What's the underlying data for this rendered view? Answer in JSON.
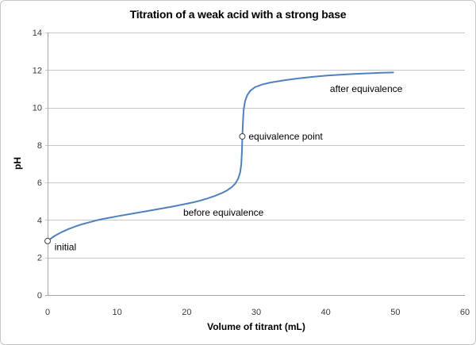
{
  "chart_data": {
    "type": "line",
    "title": "Titration of a weak acid with a strong base",
    "xlabel": "Volume of titrant (mL)",
    "ylabel": "pH",
    "xlim": [
      0,
      60
    ],
    "ylim": [
      0,
      14
    ],
    "xticks": [
      0,
      10,
      20,
      30,
      40,
      50,
      60
    ],
    "yticks": [
      0,
      2,
      4,
      6,
      8,
      10,
      12,
      14
    ],
    "grid": "horizontal",
    "legend_position": "none",
    "line_color": "#4F81BD",
    "gridline_color": "#c9c9c9",
    "axis_color": "#a6a6a6",
    "tick_label_color": "#3a3a3a",
    "marker_outline_color": "#404040",
    "series": [
      {
        "name": "titration curve",
        "points": [
          [
            0,
            2.88
          ],
          [
            0.5,
            3.02
          ],
          [
            1,
            3.15
          ],
          [
            2,
            3.35
          ],
          [
            3,
            3.52
          ],
          [
            4,
            3.66
          ],
          [
            5,
            3.78
          ],
          [
            6,
            3.88
          ],
          [
            7,
            3.98
          ],
          [
            8,
            4.06
          ],
          [
            9,
            4.13
          ],
          [
            10,
            4.2
          ],
          [
            12,
            4.33
          ],
          [
            14,
            4.46
          ],
          [
            16,
            4.59
          ],
          [
            18,
            4.72
          ],
          [
            20,
            4.87
          ],
          [
            21,
            4.95
          ],
          [
            22,
            5.04
          ],
          [
            23,
            5.15
          ],
          [
            24,
            5.28
          ],
          [
            25,
            5.43
          ],
          [
            25.8,
            5.58
          ],
          [
            26.5,
            5.76
          ],
          [
            27,
            5.95
          ],
          [
            27.4,
            6.2
          ],
          [
            27.7,
            6.55
          ],
          [
            27.85,
            7.0
          ],
          [
            27.95,
            7.7
          ],
          [
            28,
            8.46
          ],
          [
            28.1,
            9.3
          ],
          [
            28.2,
            9.9
          ],
          [
            28.4,
            10.35
          ],
          [
            28.7,
            10.65
          ],
          [
            29.1,
            10.88
          ],
          [
            29.8,
            11.08
          ],
          [
            30.8,
            11.22
          ],
          [
            32,
            11.33
          ],
          [
            34,
            11.45
          ],
          [
            36,
            11.55
          ],
          [
            38,
            11.63
          ],
          [
            40,
            11.7
          ],
          [
            42,
            11.75
          ],
          [
            44,
            11.79
          ],
          [
            46,
            11.82
          ],
          [
            48,
            11.85
          ],
          [
            49.7,
            11.87
          ]
        ]
      }
    ],
    "markers": [
      {
        "name": "initial-point",
        "x": 0,
        "y": 2.88
      },
      {
        "name": "equivalence-point",
        "x": 28,
        "y": 8.46
      }
    ],
    "annotations": [
      {
        "name": "initial",
        "text": "initial",
        "x": 1.0,
        "y": 2.55
      },
      {
        "name": "before-equivalence",
        "text": "before equivalence",
        "x": 19.5,
        "y": 4.4
      },
      {
        "name": "equivalence-point",
        "text": "equivalence point",
        "x": 28.9,
        "y": 8.45
      },
      {
        "name": "after-equivalence",
        "text": "after equivalence",
        "x": 40.6,
        "y": 11.0
      }
    ]
  }
}
